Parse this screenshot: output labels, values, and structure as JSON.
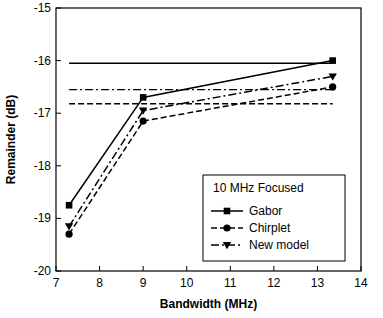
{
  "chart_data": {
    "type": "line",
    "x_label": "Bandwidth (MHz)",
    "y_label": "Remainder (dB)",
    "legend_title": "10 MHz Focused",
    "x": [
      7.3,
      9.0,
      13.35
    ],
    "series": [
      {
        "name": "Gabor",
        "color": "#000000",
        "marker": "square",
        "line_style": "solid",
        "values": [
          -18.75,
          -16.7,
          -16.0
        ],
        "reference": -16.05
      },
      {
        "name": "Chirplet",
        "color": "#000000",
        "marker": "circle",
        "line_style": "dashed",
        "values": [
          -19.3,
          -17.15,
          -16.5
        ],
        "reference": -16.82
      },
      {
        "name": "New model",
        "color": "#000000",
        "marker": "triangle-down",
        "line_style": "dash-dot",
        "values": [
          -19.15,
          -16.95,
          -16.3
        ],
        "reference": -16.55
      }
    ],
    "xlim": [
      7,
      14
    ],
    "xticks": [
      7,
      8,
      9,
      10,
      11,
      12,
      13,
      14
    ],
    "ylim": [
      -20,
      -15
    ],
    "yticks": [
      -20,
      -19,
      -18,
      -17,
      -16,
      -15
    ],
    "grid": false,
    "legend": "lower right"
  }
}
